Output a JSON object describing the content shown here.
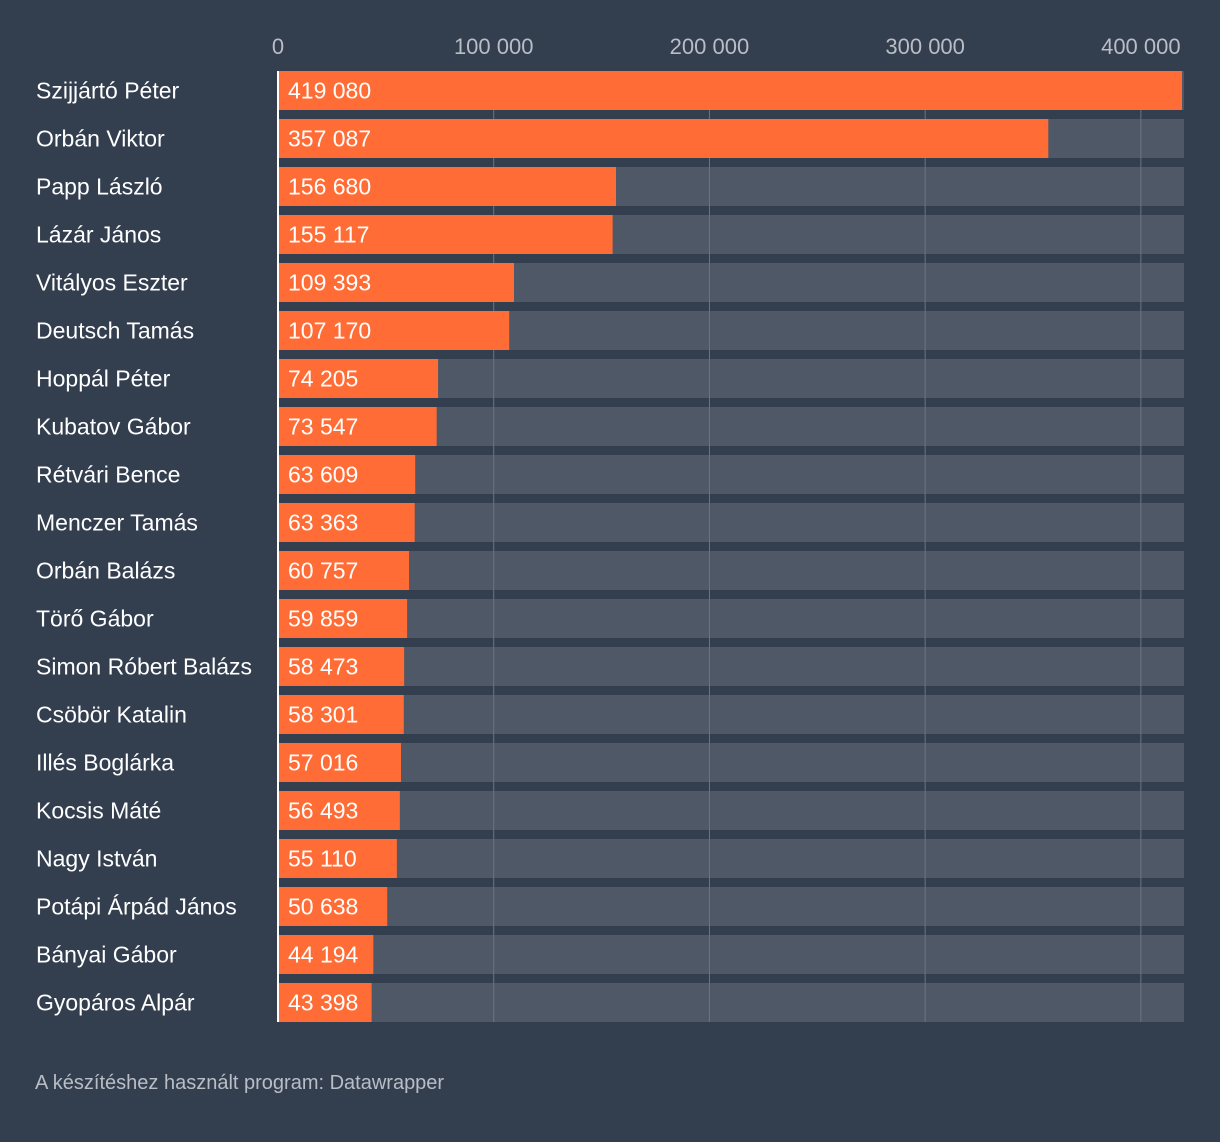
{
  "chart_data": {
    "type": "bar",
    "orientation": "horizontal",
    "title": "",
    "xlabel": "",
    "ylabel": "",
    "xlim": [
      0,
      420000
    ],
    "ticks": [
      0,
      100000,
      200000,
      300000,
      400000
    ],
    "tick_labels": [
      "0",
      "100 000",
      "200 000",
      "300 000",
      "400 000"
    ],
    "categories": [
      "Szijjártó Péter",
      "Orbán Viktor",
      "Papp László",
      "Lázár János",
      "Vitályos Eszter",
      "Deutsch Tamás",
      "Hoppál Péter",
      "Kubatov Gábor",
      "Rétvári Bence",
      "Menczer Tamás",
      "Orbán Balázs",
      "Törő Gábor",
      "Simon Róbert Balázs",
      "Csöbör Katalin",
      "Illés Boglárka",
      "Kocsis Máté",
      "Nagy István",
      "Potápi Árpád János",
      "Bányai Gábor",
      "Gyopáros Alpár"
    ],
    "values": [
      419080,
      357087,
      156680,
      155117,
      109393,
      107170,
      74205,
      73547,
      63609,
      63363,
      60757,
      59859,
      58473,
      58301,
      57016,
      56493,
      55110,
      50638,
      44194,
      43398
    ],
    "value_labels": [
      "419 080",
      "357 087",
      "156 680",
      "155 117",
      "109 393",
      "107 170",
      "74 205",
      "73 547",
      "63 609",
      "63 363",
      "60 757",
      "59 859",
      "58 473",
      "58 301",
      "57 016",
      "56 493",
      "55 110",
      "50 638",
      "44 194",
      "43 398"
    ],
    "grid": true,
    "colors": {
      "background": "#333e4f",
      "track": "#4f5866",
      "bar": "#ff6c35",
      "grid": "#6b7482",
      "baseline": "#ffffff"
    }
  },
  "footer": {
    "credit": "A készítéshez használt program: Datawrapper"
  }
}
